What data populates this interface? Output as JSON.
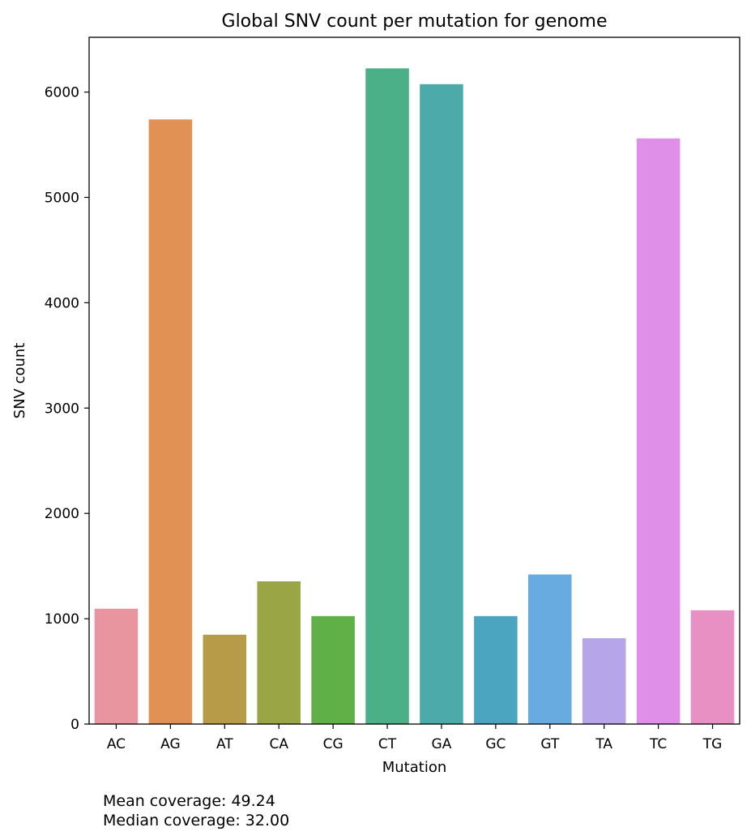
{
  "chart_data": {
    "type": "bar",
    "title": "Global SNV count per mutation for genome",
    "xlabel": "Mutation",
    "ylabel": "SNV count",
    "categories": [
      "AC",
      "AG",
      "AT",
      "CA",
      "CG",
      "CT",
      "GA",
      "GC",
      "GT",
      "TA",
      "TC",
      "TG"
    ],
    "values": [
      1095,
      5740,
      848,
      1355,
      1025,
      6225,
      6075,
      1025,
      1420,
      815,
      5560,
      1080
    ],
    "colors": [
      "#e8959f",
      "#e09153",
      "#b89b48",
      "#9aa545",
      "#5fb047",
      "#4bb088",
      "#4cabaa",
      "#4ba5c0",
      "#67abe0",
      "#b7a5ea",
      "#e08fe8",
      "#e890c4"
    ],
    "ylim": [
      0,
      6520
    ],
    "yticks": [
      0,
      1000,
      2000,
      3000,
      4000,
      5000,
      6000
    ],
    "grid": false,
    "legend": "none"
  },
  "notes": {
    "mean_coverage": "Mean coverage: 49.24",
    "median_coverage": "Median coverage: 32.00"
  }
}
